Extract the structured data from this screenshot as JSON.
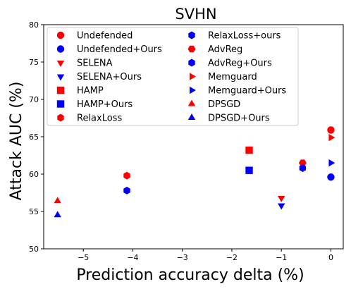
{
  "chart_data": {
    "type": "scatter",
    "title": "SVHN",
    "xlabel": "Prediction accuracy delta (%)",
    "ylabel": "Attack AUC (%)",
    "xlim": [
      -5.8,
      0.25
    ],
    "ylim": [
      50,
      80
    ],
    "xticks": [
      -5,
      -4,
      -3,
      -2,
      -1,
      0
    ],
    "xtick_labels": [
      "−5",
      "−4",
      "−3",
      "−2",
      "−1",
      "0"
    ],
    "yticks": [
      50,
      55,
      60,
      65,
      70,
      75,
      80
    ],
    "ytick_labels": [
      "50",
      "55",
      "60",
      "65",
      "70",
      "75",
      "80"
    ],
    "grid": false,
    "legend_position": "top-left, two columns",
    "colors": {
      "baseline": "#ff0000",
      "ours": "#0000ff"
    },
    "series": [
      {
        "name": "Undefended",
        "marker": "circle",
        "color": "#ff0000",
        "x": [
          0.0
        ],
        "y": [
          65.9
        ]
      },
      {
        "name": "Undefended+Ours",
        "marker": "circle",
        "color": "#0000ff",
        "x": [
          0.0
        ],
        "y": [
          59.6
        ]
      },
      {
        "name": "SELENA",
        "marker": "triangle-down",
        "color": "#ff0000",
        "x": [
          -1.0
        ],
        "y": [
          56.8
        ]
      },
      {
        "name": "SELENA+Ours",
        "marker": "triangle-down",
        "color": "#0000ff",
        "x": [
          -1.0
        ],
        "y": [
          55.8
        ]
      },
      {
        "name": "HAMP",
        "marker": "square",
        "color": "#ff0000",
        "x": [
          -1.65
        ],
        "y": [
          63.2
        ]
      },
      {
        "name": "HAMP+Ours",
        "marker": "square",
        "color": "#0000ff",
        "x": [
          -1.65
        ],
        "y": [
          60.5
        ]
      },
      {
        "name": "RelaxLoss",
        "marker": "hexagon",
        "color": "#ff0000",
        "x": [
          -4.12
        ],
        "y": [
          59.8
        ]
      },
      {
        "name": "RelaxLoss+ours",
        "marker": "hexagon",
        "color": "#0000ff",
        "x": [
          -4.12
        ],
        "y": [
          57.8
        ]
      },
      {
        "name": "AdvReg",
        "marker": "hexagon2",
        "color": "#ff0000",
        "x": [
          -0.57
        ],
        "y": [
          61.5
        ]
      },
      {
        "name": "AdvReg+Ours",
        "marker": "hexagon",
        "color": "#0000ff",
        "x": [
          -0.57
        ],
        "y": [
          60.8
        ]
      },
      {
        "name": "Memguard",
        "marker": "triangle-right",
        "color": "#ff0000",
        "x": [
          0.0
        ],
        "y": [
          64.9
        ]
      },
      {
        "name": "Memguard+Ours",
        "marker": "triangle-right",
        "color": "#0000ff",
        "x": [
          0.0
        ],
        "y": [
          61.5
        ]
      },
      {
        "name": "DPSGD",
        "marker": "triangle-up",
        "color": "#ff0000",
        "x": [
          -5.52
        ],
        "y": [
          56.4
        ]
      },
      {
        "name": "DPSGD+Ours",
        "marker": "triangle-up",
        "color": "#0000ff",
        "x": [
          -5.52
        ],
        "y": [
          54.5
        ]
      }
    ]
  }
}
